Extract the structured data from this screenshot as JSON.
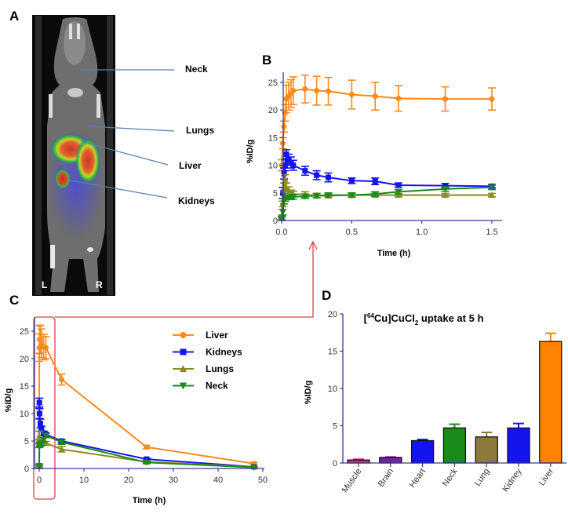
{
  "panel_a": {
    "letter": "A",
    "labels": [
      "Neck",
      "Lungs",
      "Liver",
      "Kidneys"
    ],
    "orientation_left": "L",
    "orientation_right": "R"
  },
  "chart_data": [
    {
      "panel": "B",
      "type": "line",
      "xlabel": "Time (h)",
      "ylabel": "%ID/g",
      "xlim": [
        0,
        1.5
      ],
      "ylim": [
        0,
        25
      ],
      "xticks": [
        "0.0",
        "0.5",
        "1.0",
        "1.5"
      ],
      "yticks": [
        "0",
        "5",
        "10",
        "15",
        "20",
        "25"
      ],
      "grid": false,
      "series": [
        {
          "name": "Liver",
          "color": "#ff8a1c",
          "marker": "circle",
          "x": [
            0,
            0.008,
            0.017,
            0.025,
            0.033,
            0.05,
            0.067,
            0.083,
            0.167,
            0.25,
            0.333,
            0.5,
            0.667,
            0.833,
            1.167,
            1.5
          ],
          "y": [
            10,
            14,
            17,
            19.5,
            22,
            22.5,
            23,
            23.5,
            23.8,
            23.5,
            23.4,
            22.8,
            22.5,
            22.1,
            22,
            22
          ],
          "err": [
            1,
            1,
            1,
            1.5,
            2.5,
            2.5,
            2.5,
            2.5,
            2.5,
            2.6,
            2.5,
            2.6,
            2.5,
            2.3,
            2.2,
            2
          ]
        },
        {
          "name": "Kidneys",
          "color": "#1414ee",
          "marker": "square",
          "x": [
            0,
            0.008,
            0.017,
            0.025,
            0.033,
            0.05,
            0.067,
            0.083,
            0.167,
            0.25,
            0.333,
            0.5,
            0.667,
            0.833,
            1.167,
            1.5
          ],
          "y": [
            0.5,
            5,
            8.5,
            10,
            12,
            11,
            10.5,
            10,
            9,
            8.2,
            7.8,
            7.2,
            7.1,
            6.4,
            6.3,
            6.2
          ],
          "err": [
            0.3,
            1,
            1,
            1,
            0.8,
            1,
            1,
            0.9,
            0.8,
            0.8,
            0.8,
            0.5,
            0.6,
            0.4,
            0.4,
            0.3
          ]
        },
        {
          "name": "Lungs",
          "color": "#8c8a1e",
          "marker": "triangle-up",
          "x": [
            0,
            0.008,
            0.017,
            0.025,
            0.033,
            0.05,
            0.067,
            0.083,
            0.167,
            0.25,
            0.333,
            0.5,
            0.667,
            0.833,
            1.167,
            1.5
          ],
          "y": [
            0.5,
            3,
            6,
            7.5,
            6,
            5.5,
            5,
            4.8,
            4.7,
            4.5,
            4.5,
            4.6,
            4.6,
            4.6,
            4.6,
            4.6
          ],
          "err": [
            0.3,
            0.5,
            0.8,
            0.8,
            0.8,
            0.6,
            0.5,
            0.5,
            0.5,
            0.4,
            0.3,
            0.3,
            0.3,
            0.3,
            0.3,
            0.3
          ]
        },
        {
          "name": "Neck",
          "color": "#1a8a1a",
          "marker": "triangle-down",
          "x": [
            0,
            0.008,
            0.017,
            0.025,
            0.033,
            0.05,
            0.067,
            0.083,
            0.167,
            0.25,
            0.333,
            0.5,
            0.667,
            0.833,
            1.167,
            1.5
          ],
          "y": [
            0.3,
            1.5,
            3.5,
            4,
            4.2,
            4.2,
            4.2,
            4.3,
            4.4,
            4.5,
            4.6,
            4.6,
            4.8,
            5.2,
            5.7,
            6
          ],
          "err": [
            0.3,
            0.5,
            0.5,
            0.5,
            0.4,
            0.4,
            0.4,
            0.4,
            0.4,
            0.4,
            0.4,
            0.4,
            0.4,
            0.4,
            0.4,
            0.4
          ]
        }
      ]
    },
    {
      "panel": "C",
      "type": "line",
      "xlabel": "Time (h)",
      "ylabel": "%ID/g",
      "xlim": [
        0,
        50
      ],
      "ylim": [
        0,
        25
      ],
      "xticks": [
        "0",
        "10",
        "20",
        "30",
        "40",
        "50"
      ],
      "yticks": [
        "0",
        "5",
        "10",
        "15",
        "20",
        "25"
      ],
      "grid": false,
      "legend": "top-right",
      "series": [
        {
          "name": "Liver",
          "color": "#ff8a1c",
          "marker": "circle",
          "x": [
            0,
            0.033,
            0.083,
            0.25,
            0.5,
            1,
            1.5,
            5,
            24,
            48
          ],
          "y": [
            10,
            22,
            23.5,
            23.5,
            22.8,
            22.1,
            22,
            16.2,
            3.9,
            0.9
          ],
          "err": [
            1,
            2.5,
            2.5,
            2.6,
            2.6,
            2.3,
            2,
            1,
            0.3,
            0.2
          ]
        },
        {
          "name": "Kidneys",
          "color": "#1414ee",
          "marker": "square",
          "x": [
            0,
            0.033,
            0.083,
            0.25,
            0.5,
            1,
            1.5,
            5,
            24,
            48
          ],
          "y": [
            0.5,
            12,
            10,
            8.2,
            7.2,
            6.4,
            6.2,
            5,
            1.7,
            0.3
          ],
          "err": [
            0.3,
            0.8,
            0.9,
            0.8,
            0.5,
            0.4,
            0.3,
            0.3,
            0.2,
            0.1
          ]
        },
        {
          "name": "Lungs",
          "color": "#8c8a1e",
          "marker": "triangle-up",
          "x": [
            0,
            0.033,
            0.083,
            0.25,
            0.5,
            1,
            1.5,
            5,
            24,
            48
          ],
          "y": [
            0.5,
            6,
            4.8,
            4.5,
            4.6,
            4.6,
            4.6,
            3.5,
            1.2,
            0.3
          ],
          "err": [
            0.3,
            0.8,
            0.5,
            0.4,
            0.3,
            0.3,
            0.3,
            0.5,
            0.2,
            0.1
          ]
        },
        {
          "name": "Neck",
          "color": "#1a8a1a",
          "marker": "triangle-down",
          "x": [
            0,
            0.033,
            0.083,
            0.25,
            0.5,
            1,
            1.5,
            5,
            24,
            48
          ],
          "y": [
            0.3,
            4.2,
            4.3,
            4.5,
            4.6,
            5.2,
            6,
            4.8,
            1.1,
            0.2
          ],
          "err": [
            0.3,
            0.4,
            0.4,
            0.4,
            0.4,
            0.4,
            0.4,
            0.4,
            0.2,
            0.1
          ]
        }
      ]
    },
    {
      "panel": "D",
      "type": "bar",
      "title": "[64Cu]CuCl2 uptake at 5 h",
      "xlabel": "",
      "ylabel": "%ID/g",
      "ylim": [
        0,
        20
      ],
      "yticks": [
        "0",
        "5",
        "10",
        "15",
        "20"
      ],
      "grid": false,
      "categories": [
        "Muscle",
        "Brain",
        "Heart",
        "Neck",
        "Lung",
        "Kidney",
        "Liver"
      ],
      "values": [
        0.4,
        0.75,
        3.0,
        4.7,
        3.5,
        4.7,
        16.3
      ],
      "err": [
        0.1,
        0.05,
        0.15,
        0.5,
        0.6,
        0.6,
        1.1
      ],
      "colors": [
        "#e8207c",
        "#7a1fa2",
        "#1414ee",
        "#1a8a1a",
        "#8a7a3c",
        "#1414ee",
        "#ff8200"
      ]
    }
  ],
  "panel_letters": {
    "b": "B",
    "c": "C",
    "d": "D"
  },
  "colors": {
    "axis": "#3a3a8c",
    "zoom_box": "#e04040",
    "pointer_line": "#5a7fb0"
  }
}
